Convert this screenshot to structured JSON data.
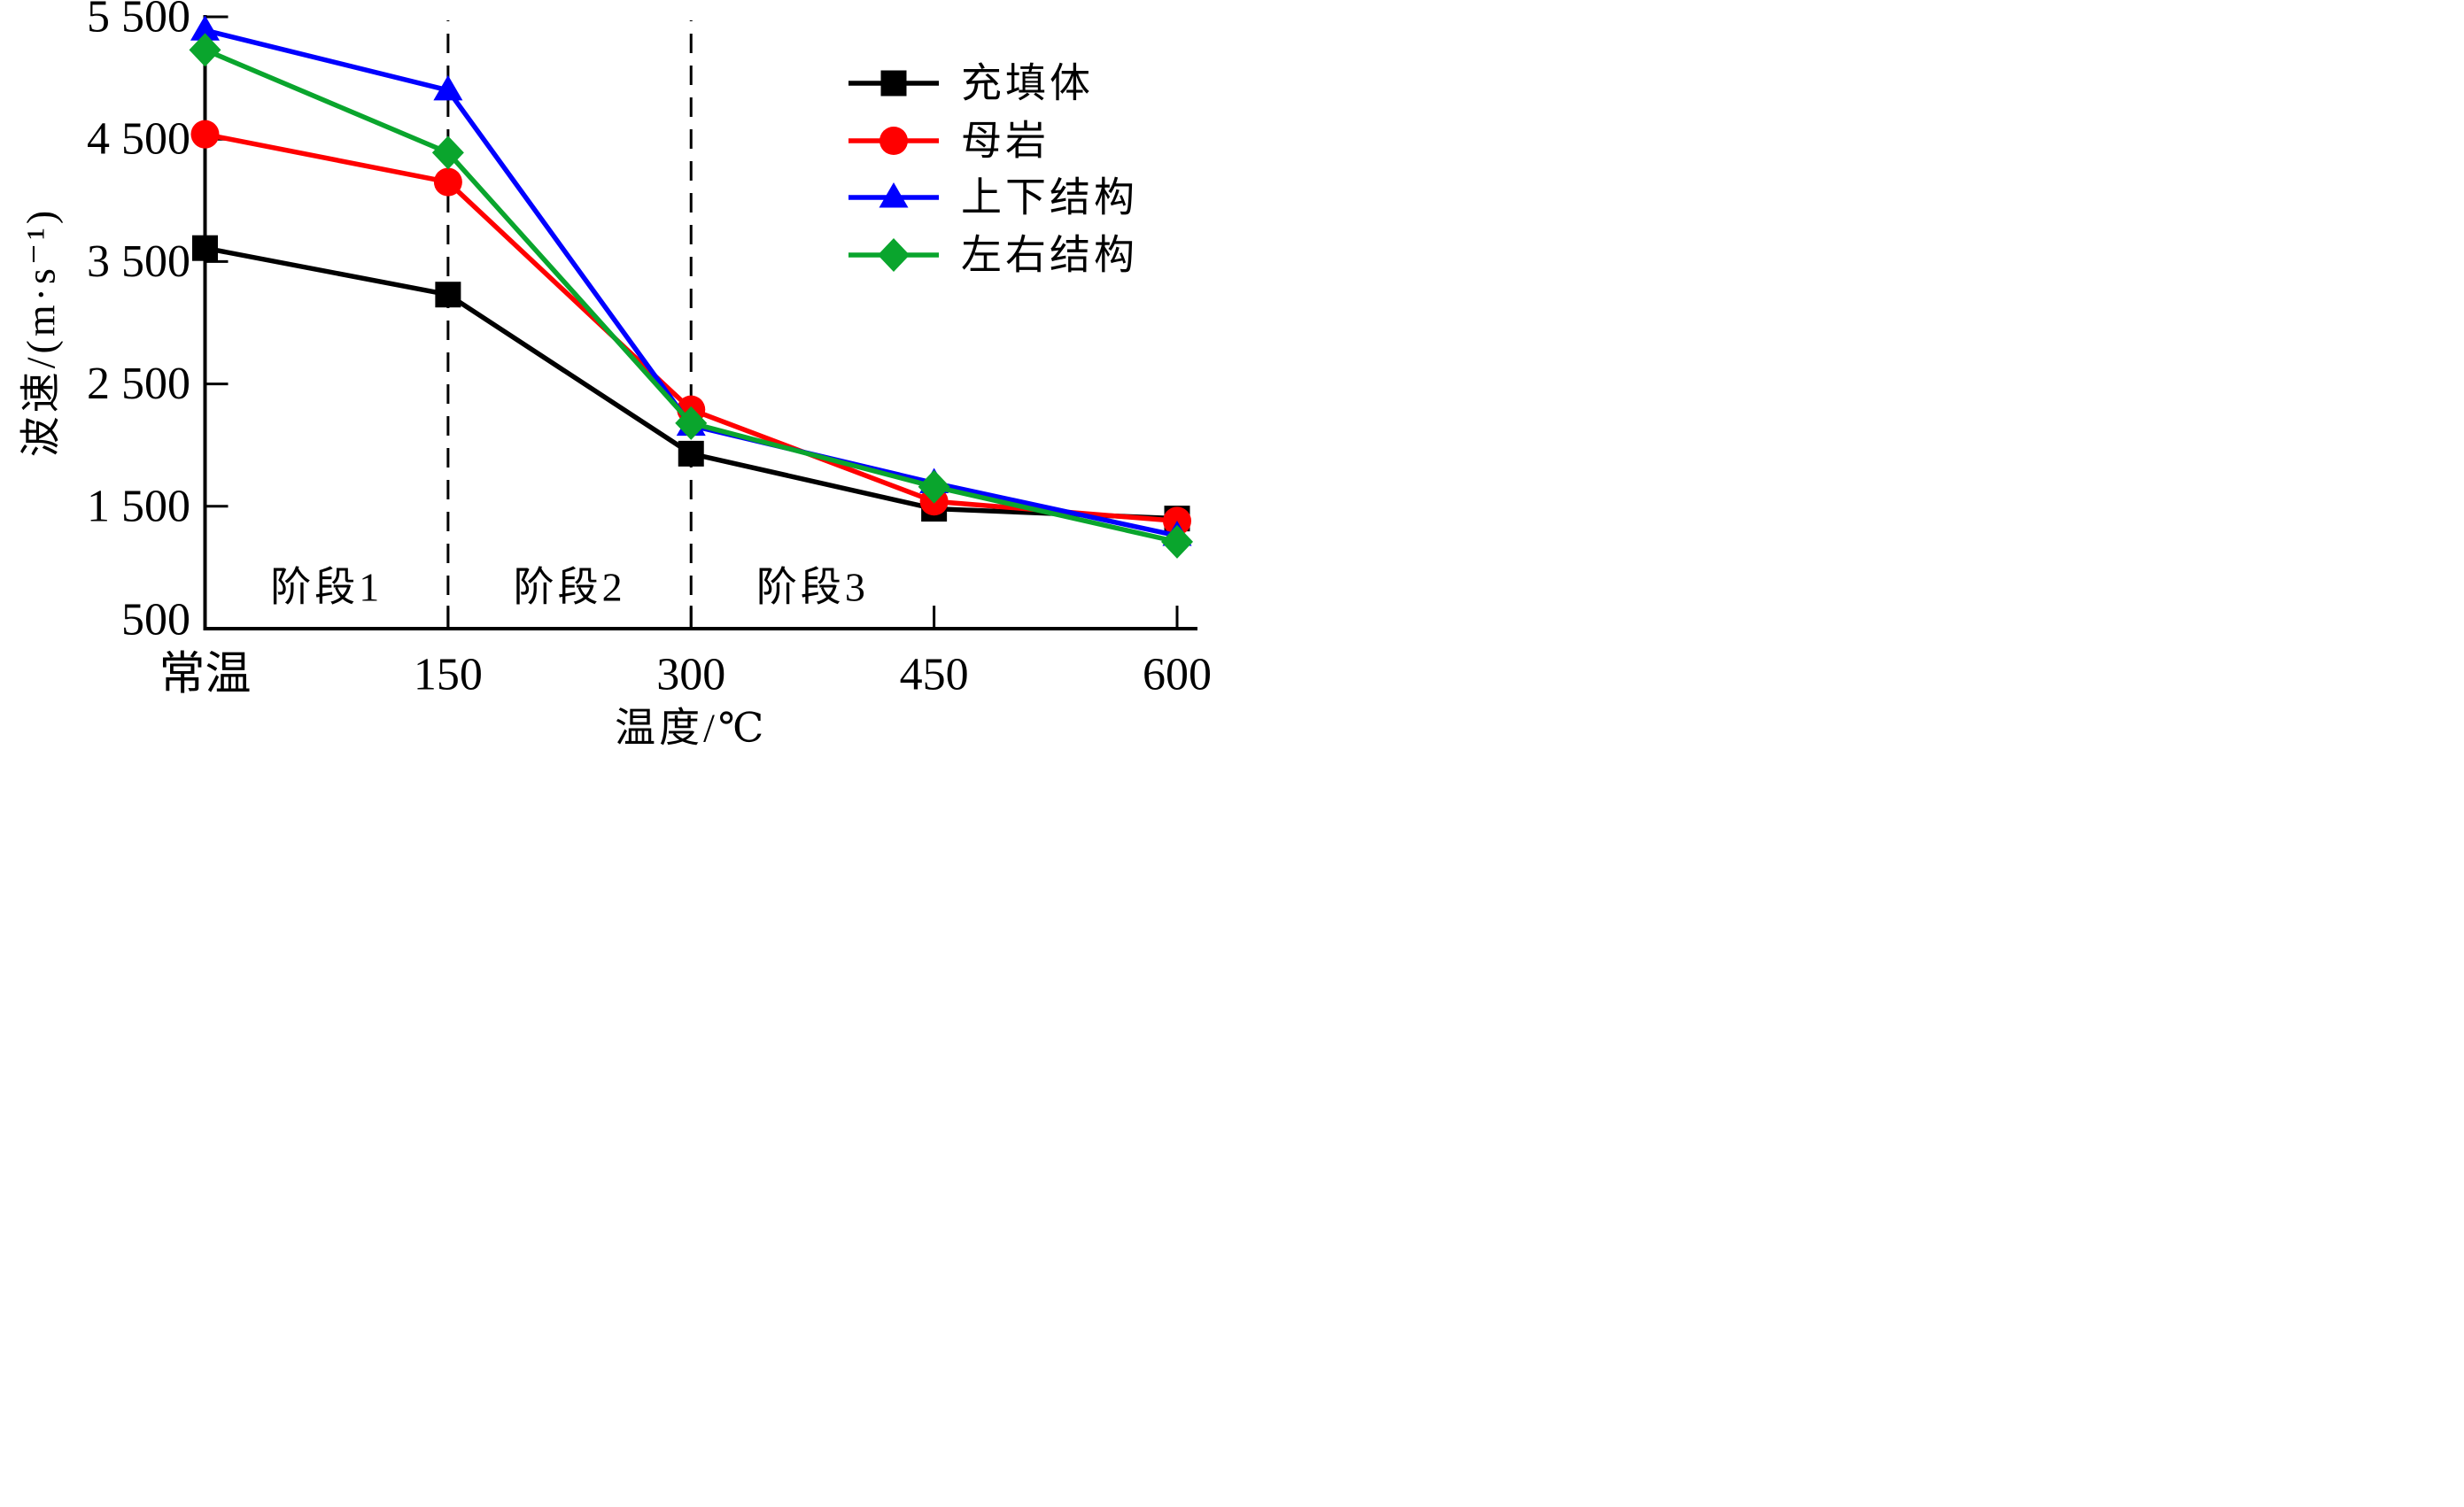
{
  "chart_data": {
    "type": "line",
    "title": "",
    "xlabel": "温度/℃",
    "ylabel": "波速/(m·s⁻¹)",
    "categories": [
      "常温",
      "150",
      "300",
      "450",
      "600"
    ],
    "x_axis_note": "first category is room temperature, others in °C",
    "ylim": [
      500,
      5500
    ],
    "yticks": [
      500,
      1500,
      2500,
      3500,
      4500,
      5500
    ],
    "ytick_labels": [
      "500",
      "1 500",
      "2 500",
      "3 500",
      "4 500",
      "5 500"
    ],
    "grid": false,
    "legend_position": "top-right",
    "series": [
      {
        "name": "充填体",
        "color": "#000000",
        "marker": "square",
        "values": [
          3610,
          3230,
          1930,
          1480,
          1400
        ]
      },
      {
        "name": "母岩",
        "color": "#FF0000",
        "marker": "circle",
        "values": [
          4540,
          4150,
          2290,
          1540,
          1380
        ]
      },
      {
        "name": "上下结构",
        "color": "#0000FF",
        "marker": "triangle",
        "values": [
          5390,
          4900,
          2160,
          1690,
          1260
        ]
      },
      {
        "name": "左右结构",
        "color": "#0AA52D",
        "marker": "diamond",
        "values": [
          5230,
          4390,
          2180,
          1660,
          1210
        ]
      }
    ],
    "stage_dividers": {
      "style": "dashed",
      "at_categories": [
        "150",
        "300"
      ]
    },
    "stage_labels": [
      "阶段1",
      "阶段2",
      "阶段3"
    ],
    "axis_color": "#000000"
  }
}
